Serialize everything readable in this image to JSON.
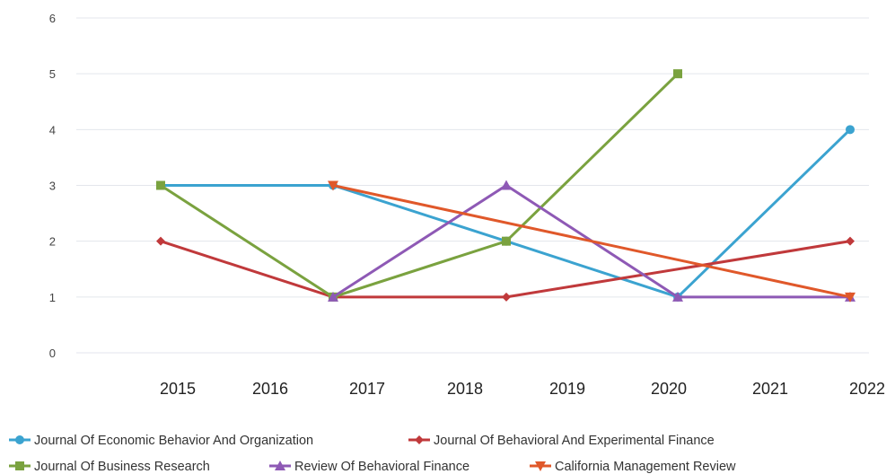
{
  "chart_data": {
    "type": "line",
    "title": "",
    "xlabel": "",
    "ylabel": "",
    "ylim": [
      0,
      6
    ],
    "y_ticks": [
      "0",
      "1",
      "2",
      "3",
      "4",
      "5",
      "6"
    ],
    "x_tick_labels": [
      "2015",
      "2016",
      "2017",
      "2018",
      "2019",
      "2020",
      "2021",
      "2022"
    ],
    "grid": "horizontal",
    "legend_position": "bottom",
    "x": [
      2015,
      2017,
      2018,
      2020,
      2022
    ],
    "series": [
      {
        "name": "Journal Of Economic Behavior And Organization",
        "color": "#3ba3d0",
        "marker": "circle",
        "values": [
          3,
          3,
          2,
          1,
          4
        ]
      },
      {
        "name": "Journal Of Behavioral And Experimental Finance",
        "color": "#c0393b",
        "marker": "diamond",
        "values": [
          2,
          1,
          1,
          null,
          2
        ]
      },
      {
        "name": "Journal Of Business Research",
        "color": "#7aa23f",
        "marker": "square",
        "values": [
          3,
          1,
          2,
          5,
          null
        ]
      },
      {
        "name": "Review Of Behavioral Finance",
        "color": "#8e59b5",
        "marker": "triangle",
        "values": [
          null,
          1,
          3,
          1,
          1
        ]
      },
      {
        "name": "California Management Review",
        "color": "#e0582a",
        "marker": "triangle-down",
        "values": [
          null,
          3,
          null,
          null,
          1
        ]
      }
    ]
  }
}
